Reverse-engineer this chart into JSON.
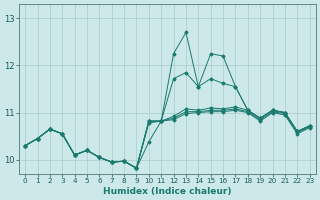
{
  "xlabel": "Humidex (Indice chaleur)",
  "background_color": "#cce8e8",
  "line_color": "#1a7a6e",
  "grid_color": "#aacccc",
  "xlim": [
    -0.5,
    23.5
  ],
  "ylim": [
    9.7,
    13.3
  ],
  "yticks": [
    10,
    11,
    12,
    13
  ],
  "xticks": [
    0,
    1,
    2,
    3,
    4,
    5,
    6,
    7,
    8,
    9,
    10,
    11,
    12,
    13,
    14,
    15,
    16,
    17,
    18,
    19,
    20,
    21,
    22,
    23
  ],
  "lines": [
    [
      10.3,
      10.45,
      10.65,
      10.55,
      10.1,
      10.2,
      10.05,
      9.95,
      9.97,
      9.82,
      10.38,
      10.82,
      12.25,
      12.7,
      11.55,
      12.25,
      12.2,
      11.55,
      11.05,
      10.88,
      11.05,
      11.0,
      10.6,
      10.72
    ],
    [
      10.3,
      10.45,
      10.65,
      10.55,
      10.1,
      10.2,
      10.05,
      9.95,
      9.97,
      9.82,
      10.78,
      10.82,
      11.72,
      11.85,
      11.55,
      11.72,
      11.62,
      11.55,
      11.05,
      10.88,
      11.05,
      11.0,
      10.6,
      10.72
    ],
    [
      10.3,
      10.45,
      10.65,
      10.55,
      10.1,
      10.2,
      10.05,
      9.95,
      9.97,
      9.82,
      10.82,
      10.82,
      10.92,
      11.08,
      11.05,
      11.1,
      11.08,
      11.12,
      11.05,
      10.88,
      11.05,
      11.0,
      10.6,
      10.72
    ],
    [
      10.3,
      10.45,
      10.65,
      10.55,
      10.1,
      10.2,
      10.05,
      9.95,
      9.97,
      9.82,
      10.82,
      10.82,
      10.88,
      11.02,
      11.02,
      11.05,
      11.05,
      11.08,
      11.02,
      10.85,
      11.02,
      10.98,
      10.58,
      10.7
    ],
    [
      10.3,
      10.45,
      10.65,
      10.55,
      10.1,
      10.2,
      10.05,
      9.95,
      9.97,
      9.82,
      10.82,
      10.82,
      10.85,
      10.98,
      11.0,
      11.02,
      11.02,
      11.05,
      11.0,
      10.82,
      11.0,
      10.95,
      10.55,
      10.68
    ]
  ]
}
